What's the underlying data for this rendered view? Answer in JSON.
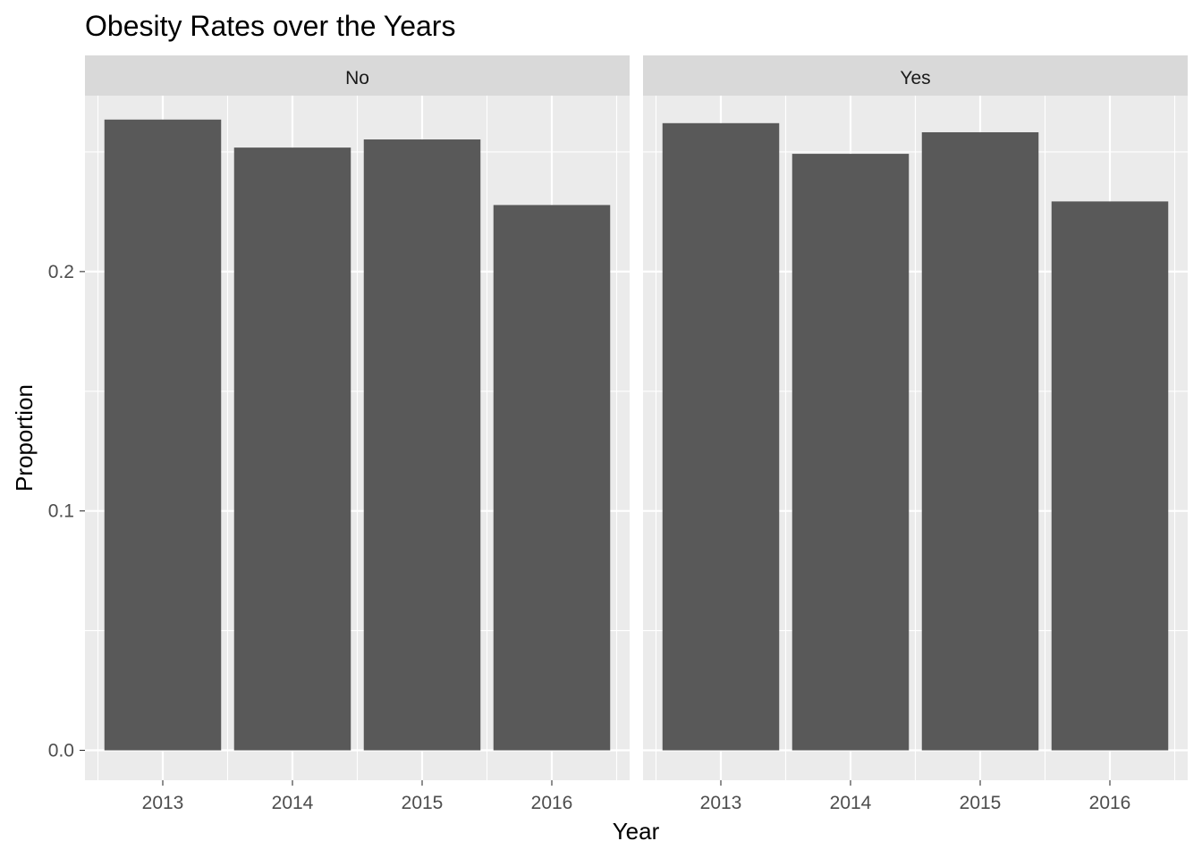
{
  "chart_data": {
    "type": "bar",
    "title": "Obesity Rates over the Years",
    "xlabel": "Year",
    "ylabel": "Proportion",
    "categories": [
      "2013",
      "2014",
      "2015",
      "2016"
    ],
    "ylim": [
      -0.0125,
      0.2735
    ],
    "yticks": [
      0.0,
      0.1,
      0.2
    ],
    "ytick_labels": [
      "0.0",
      "0.1",
      "0.2"
    ],
    "grid": true,
    "facets": [
      {
        "label": "No",
        "values": [
          0.2635,
          0.2518,
          0.2552,
          0.2278
        ]
      },
      {
        "label": "Yes",
        "values": [
          0.262,
          0.2492,
          0.2582,
          0.2293
        ]
      }
    ],
    "colors": {
      "bar": "#595959",
      "panel_background": "#ebebeb",
      "strip_background": "#d9d9d9",
      "grid": "#ffffff",
      "tick_text": "#4d4d4d"
    }
  }
}
